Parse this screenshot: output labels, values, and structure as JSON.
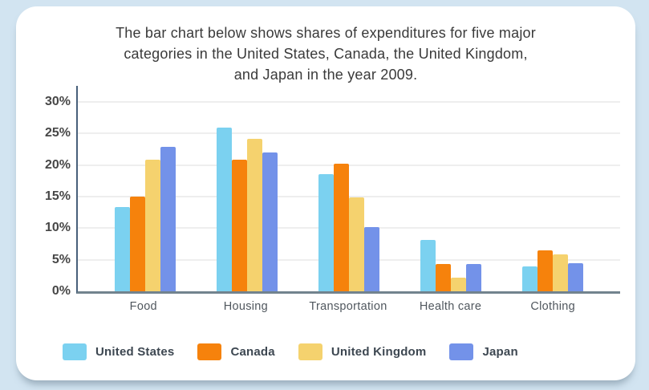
{
  "page": {
    "background_color": "#d2e4f1",
    "card_color": "#ffffff"
  },
  "title_lines": [
    "The bar chart below shows shares of expenditures for five major",
    "categories in the United States, Canada, the United Kingdom,",
    "and Japan in the year 2009."
  ],
  "chart_data": {
    "type": "bar",
    "title": "The bar chart below shows shares of expenditures for five major categories in the United States, Canada, the United Kingdom, and Japan in the year 2009.",
    "categories": [
      "Food",
      "Housing",
      "Transportation",
      "Health care",
      "Clothing"
    ],
    "series": [
      {
        "name": "United States",
        "color": "#7bd1f0",
        "values": [
          13.3,
          25.9,
          18.5,
          8.2,
          4.0
        ]
      },
      {
        "name": "Canada",
        "color": "#f6820c",
        "values": [
          15.0,
          20.8,
          20.2,
          4.3,
          6.5
        ]
      },
      {
        "name": "United Kingdom",
        "color": "#f5d26e",
        "values": [
          20.8,
          24.2,
          14.9,
          2.1,
          5.9
        ]
      },
      {
        "name": "Japan",
        "color": "#7392e9",
        "values": [
          22.9,
          22.0,
          10.2,
          4.3,
          4.5
        ]
      }
    ],
    "xlabel": "",
    "ylabel": "",
    "ylim": [
      0,
      30
    ],
    "y_ticks": [
      {
        "label": "0%",
        "value": 0
      },
      {
        "label": "5%",
        "value": 5
      },
      {
        "label": "10%",
        "value": 10
      },
      {
        "label": "15%",
        "value": 15
      },
      {
        "label": "20%",
        "value": 20
      },
      {
        "label": "25%",
        "value": 25
      },
      {
        "label": "30%",
        "value": 30
      }
    ],
    "grid": true,
    "legend_position": "bottom",
    "axis_color": "#48607a",
    "grid_color": "#eeeeee"
  }
}
